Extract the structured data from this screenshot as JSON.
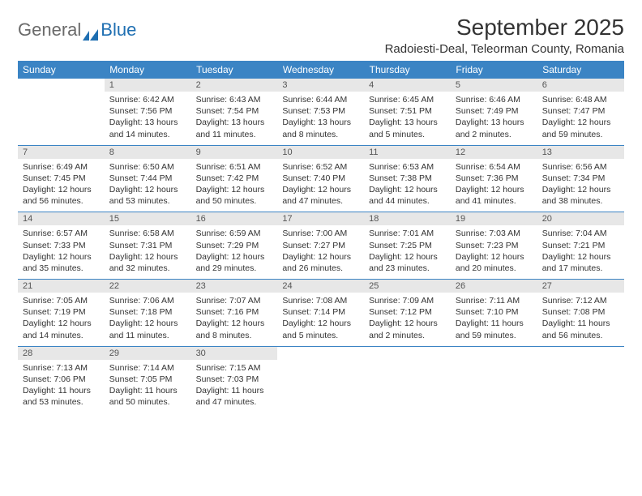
{
  "logo": {
    "general": "General",
    "blue": "Blue"
  },
  "title": "September 2025",
  "location": "Radoiesti-Deal, Teleorman County, Romania",
  "colors": {
    "header_bg": "#3b84c4",
    "header_text": "#ffffff",
    "daynum_bg": "#e7e7e7",
    "row_border": "#3b84c4",
    "logo_gray": "#6a6a6a",
    "logo_blue": "#1f6fb2",
    "body_text": "#333333",
    "page_bg": "#ffffff"
  },
  "weekdays": [
    "Sunday",
    "Monday",
    "Tuesday",
    "Wednesday",
    "Thursday",
    "Friday",
    "Saturday"
  ],
  "weeks": [
    [
      {
        "n": "",
        "sr": "",
        "ss": "",
        "dl": ""
      },
      {
        "n": "1",
        "sr": "6:42 AM",
        "ss": "7:56 PM",
        "dl": "13 hours and 14 minutes."
      },
      {
        "n": "2",
        "sr": "6:43 AM",
        "ss": "7:54 PM",
        "dl": "13 hours and 11 minutes."
      },
      {
        "n": "3",
        "sr": "6:44 AM",
        "ss": "7:53 PM",
        "dl": "13 hours and 8 minutes."
      },
      {
        "n": "4",
        "sr": "6:45 AM",
        "ss": "7:51 PM",
        "dl": "13 hours and 5 minutes."
      },
      {
        "n": "5",
        "sr": "6:46 AM",
        "ss": "7:49 PM",
        "dl": "13 hours and 2 minutes."
      },
      {
        "n": "6",
        "sr": "6:48 AM",
        "ss": "7:47 PM",
        "dl": "12 hours and 59 minutes."
      }
    ],
    [
      {
        "n": "7",
        "sr": "6:49 AM",
        "ss": "7:45 PM",
        "dl": "12 hours and 56 minutes."
      },
      {
        "n": "8",
        "sr": "6:50 AM",
        "ss": "7:44 PM",
        "dl": "12 hours and 53 minutes."
      },
      {
        "n": "9",
        "sr": "6:51 AM",
        "ss": "7:42 PM",
        "dl": "12 hours and 50 minutes."
      },
      {
        "n": "10",
        "sr": "6:52 AM",
        "ss": "7:40 PM",
        "dl": "12 hours and 47 minutes."
      },
      {
        "n": "11",
        "sr": "6:53 AM",
        "ss": "7:38 PM",
        "dl": "12 hours and 44 minutes."
      },
      {
        "n": "12",
        "sr": "6:54 AM",
        "ss": "7:36 PM",
        "dl": "12 hours and 41 minutes."
      },
      {
        "n": "13",
        "sr": "6:56 AM",
        "ss": "7:34 PM",
        "dl": "12 hours and 38 minutes."
      }
    ],
    [
      {
        "n": "14",
        "sr": "6:57 AM",
        "ss": "7:33 PM",
        "dl": "12 hours and 35 minutes."
      },
      {
        "n": "15",
        "sr": "6:58 AM",
        "ss": "7:31 PM",
        "dl": "12 hours and 32 minutes."
      },
      {
        "n": "16",
        "sr": "6:59 AM",
        "ss": "7:29 PM",
        "dl": "12 hours and 29 minutes."
      },
      {
        "n": "17",
        "sr": "7:00 AM",
        "ss": "7:27 PM",
        "dl": "12 hours and 26 minutes."
      },
      {
        "n": "18",
        "sr": "7:01 AM",
        "ss": "7:25 PM",
        "dl": "12 hours and 23 minutes."
      },
      {
        "n": "19",
        "sr": "7:03 AM",
        "ss": "7:23 PM",
        "dl": "12 hours and 20 minutes."
      },
      {
        "n": "20",
        "sr": "7:04 AM",
        "ss": "7:21 PM",
        "dl": "12 hours and 17 minutes."
      }
    ],
    [
      {
        "n": "21",
        "sr": "7:05 AM",
        "ss": "7:19 PM",
        "dl": "12 hours and 14 minutes."
      },
      {
        "n": "22",
        "sr": "7:06 AM",
        "ss": "7:18 PM",
        "dl": "12 hours and 11 minutes."
      },
      {
        "n": "23",
        "sr": "7:07 AM",
        "ss": "7:16 PM",
        "dl": "12 hours and 8 minutes."
      },
      {
        "n": "24",
        "sr": "7:08 AM",
        "ss": "7:14 PM",
        "dl": "12 hours and 5 minutes."
      },
      {
        "n": "25",
        "sr": "7:09 AM",
        "ss": "7:12 PM",
        "dl": "12 hours and 2 minutes."
      },
      {
        "n": "26",
        "sr": "7:11 AM",
        "ss": "7:10 PM",
        "dl": "11 hours and 59 minutes."
      },
      {
        "n": "27",
        "sr": "7:12 AM",
        "ss": "7:08 PM",
        "dl": "11 hours and 56 minutes."
      }
    ],
    [
      {
        "n": "28",
        "sr": "7:13 AM",
        "ss": "7:06 PM",
        "dl": "11 hours and 53 minutes."
      },
      {
        "n": "29",
        "sr": "7:14 AM",
        "ss": "7:05 PM",
        "dl": "11 hours and 50 minutes."
      },
      {
        "n": "30",
        "sr": "7:15 AM",
        "ss": "7:03 PM",
        "dl": "11 hours and 47 minutes."
      },
      {
        "n": "",
        "sr": "",
        "ss": "",
        "dl": ""
      },
      {
        "n": "",
        "sr": "",
        "ss": "",
        "dl": ""
      },
      {
        "n": "",
        "sr": "",
        "ss": "",
        "dl": ""
      },
      {
        "n": "",
        "sr": "",
        "ss": "",
        "dl": ""
      }
    ]
  ],
  "labels": {
    "sunrise": "Sunrise:",
    "sunset": "Sunset:",
    "daylight": "Daylight:"
  }
}
